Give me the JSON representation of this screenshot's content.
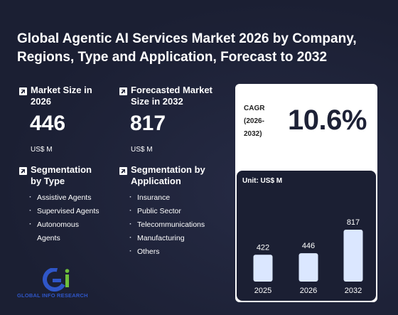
{
  "title": "Global Agentic AI Services Market 2026 by Company, Regions, Type and Application, Forecast to 2032",
  "market_size": {
    "label": "Market Size in 2026",
    "value": "446",
    "unit": "US$ M",
    "icon": "external-link-icon"
  },
  "forecast": {
    "label": "Forecasted Market Size in 2032",
    "value": "817",
    "unit": "US$ M",
    "icon": "external-link-icon"
  },
  "segmentation_type": {
    "label": "Segmentation by Type",
    "items": [
      "Assistive Agents",
      "Supervised Agents",
      "Autonomous Agents"
    ]
  },
  "segmentation_application": {
    "label": "Segmentation by Application",
    "items": [
      "Insurance",
      "Public Sector",
      "Telecommunications",
      "Manufacturing",
      "Others"
    ]
  },
  "cagr": {
    "label": "CAGR (2026-2032)",
    "value": "10.6%"
  },
  "logo": {
    "text": "GLOBAL INFO RESEARCH",
    "mark": "Gi"
  },
  "colors": {
    "background": "#1d2136",
    "bar": "#dbe7ff",
    "logo_blue": "#2f56c8",
    "logo_green": "#6fbf3a"
  },
  "chart_data": {
    "type": "bar",
    "unit_label": "Unit: US$ M",
    "categories": [
      "2025",
      "2026",
      "2032"
    ],
    "values": [
      422,
      446,
      817
    ],
    "ylim": [
      0,
      817
    ],
    "grid": false
  }
}
